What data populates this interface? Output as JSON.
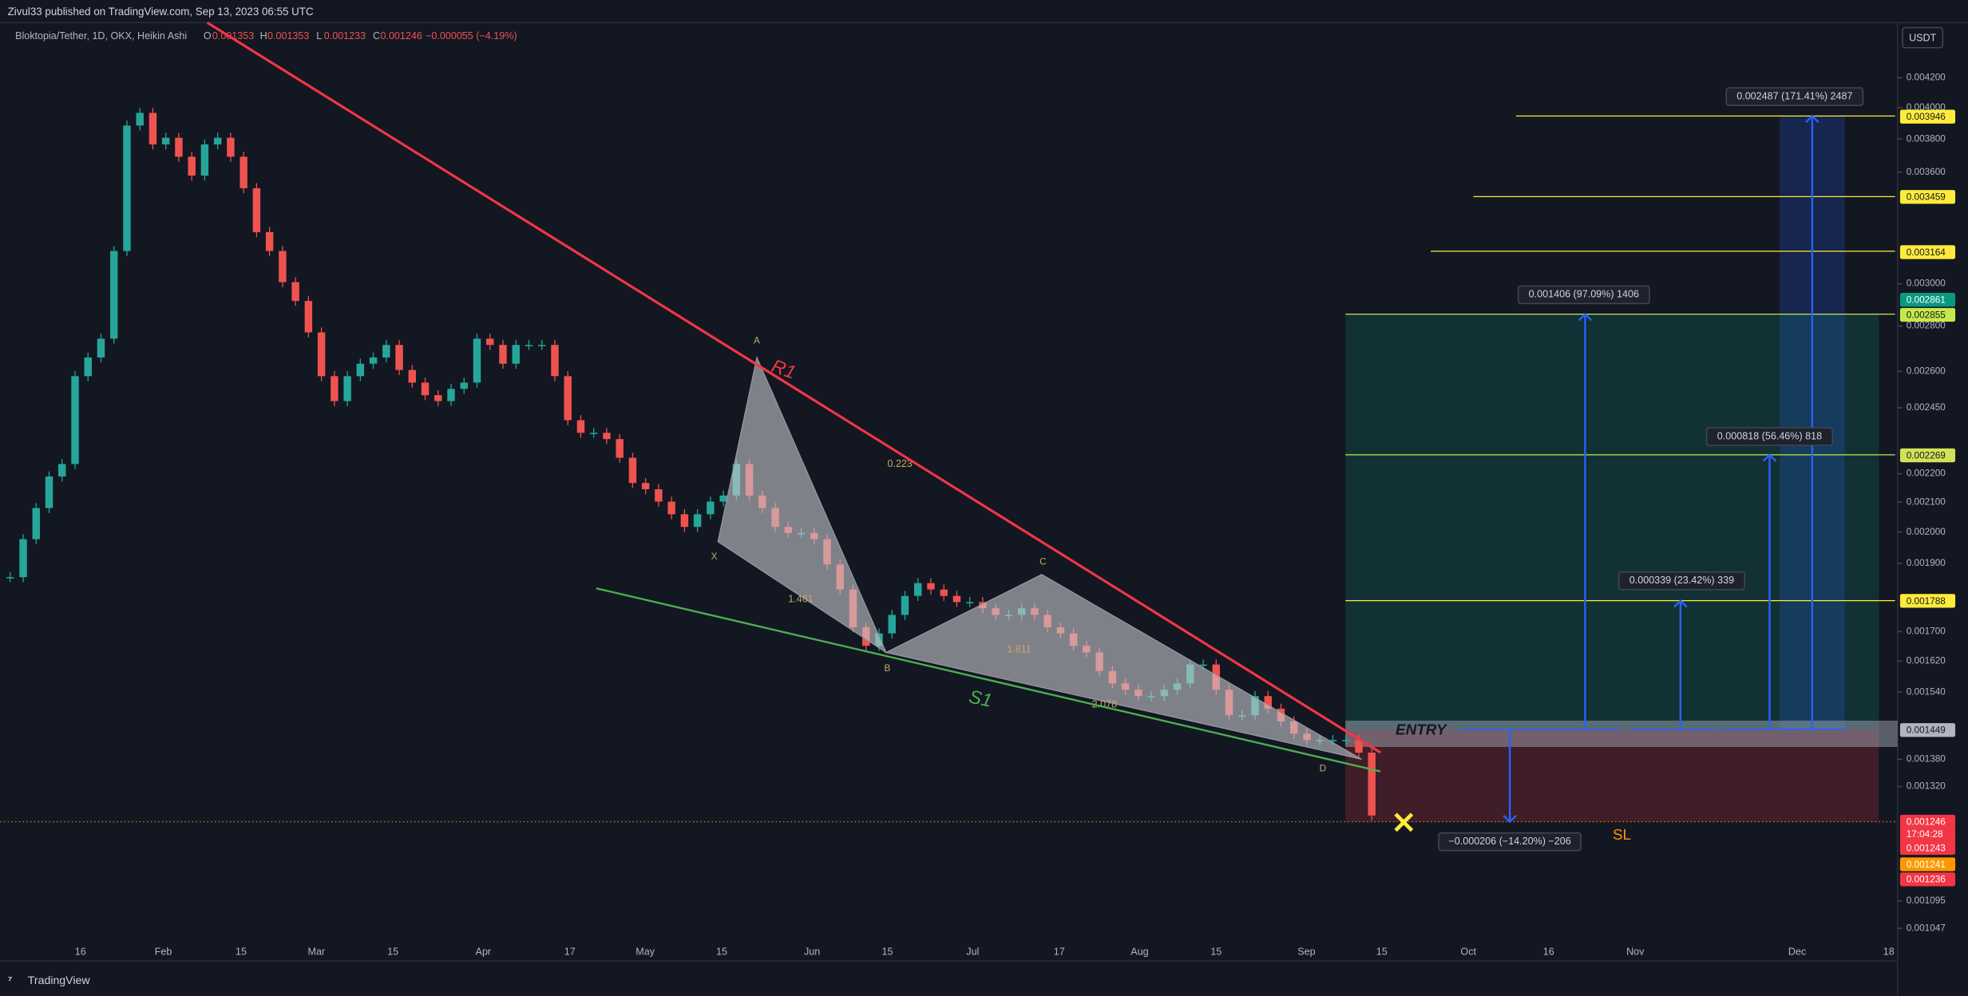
{
  "header": {
    "publisher": "Zivul33 published on TradingView.com, Sep 13, 2023 06:55 UTC",
    "brand": "TradingView"
  },
  "chart_data": {
    "type": "candlestick",
    "symbol": "Bloktopia/Tether, 1D, OKX, Heikin Ashi",
    "ohlc": [
      {
        "label": "O",
        "value": 0.001353
      },
      {
        "label": "H",
        "value": 0.001353
      },
      {
        "label": "L",
        "value": 0.001233
      },
      {
        "label": "C",
        "value": 0.001246
      }
    ],
    "change": "−0.000055 (−4.19%)",
    "currency": "USDT",
    "up_color": "#26a69a",
    "down_color": "#ef5350",
    "values": [
      0.001858,
      0.001977,
      0.00208,
      0.00219,
      0.002235,
      0.00258,
      0.00266,
      0.002743,
      0.003165,
      0.003885,
      0.003966,
      0.003767,
      0.003808,
      0.003692,
      0.00358,
      0.003767,
      0.003808,
      0.003692,
      0.003507,
      0.003264,
      0.003165,
      0.003008,
      0.002917,
      0.002771,
      0.00258,
      0.002477,
      0.00258,
      0.002633,
      0.00266,
      0.002715,
      0.002606,
      0.002553,
      0.002501,
      0.002477,
      0.002527,
      0.002553,
      0.002743,
      0.002715,
      0.002633,
      0.002715,
      0.002715,
      0.002715,
      0.00258,
      0.002401,
      0.002352,
      0.002352,
      0.002328,
      0.002258,
      0.002167,
      0.002145,
      0.002102,
      0.002059,
      0.002017,
      0.002059,
      0.002102,
      0.002123,
      0.002235,
      0.002123,
      0.00208,
      0.002017,
      0.001997,
      0.001997,
      0.001977,
      0.001897,
      0.001821,
      0.001712,
      0.001661,
      0.001695,
      0.001747,
      0.001802,
      0.00184,
      0.001821,
      0.001802,
      0.001784,
      0.001784,
      0.001766,
      0.001747,
      0.001747,
      0.001766,
      0.001747,
      0.001712,
      0.001695,
      0.001661,
      0.001643,
      0.001594,
      0.001562,
      0.001546,
      0.00153,
      0.00153,
      0.001546,
      0.001562,
      0.001611,
      0.001611,
      0.001546,
      0.001483,
      0.001483,
      0.00153,
      0.001499,
      0.001468,
      0.001439,
      0.001424,
      0.001424,
      0.001424,
      0.001424,
      0.001395,
      0.001259
    ],
    "log_scale": true,
    "ylim": [
      0.001,
      0.0046
    ],
    "yticks": [
      {
        "value": 0.0042,
        "label": "0.004200"
      },
      {
        "value": 0.004,
        "label": "0.004000"
      },
      {
        "value": 0.0038,
        "label": "0.003800"
      },
      {
        "value": 0.0036,
        "label": "0.003600"
      },
      {
        "value": 0.003,
        "label": "0.003000"
      },
      {
        "value": 0.0028,
        "label": "0.002800"
      },
      {
        "value": 0.0026,
        "label": "0.002600"
      },
      {
        "value": 0.00245,
        "label": "0.002450"
      },
      {
        "value": 0.0022,
        "label": "0.002200"
      },
      {
        "value": 0.0021,
        "label": "0.002100"
      },
      {
        "value": 0.002,
        "label": "0.002000"
      },
      {
        "value": 0.0019,
        "label": "0.001900"
      },
      {
        "value": 0.0017,
        "label": "0.001700"
      },
      {
        "value": 0.00162,
        "label": "0.001620"
      },
      {
        "value": 0.00154,
        "label": "0.001540"
      },
      {
        "value": 0.00138,
        "label": "0.001380"
      },
      {
        "value": 0.00132,
        "label": "0.001320"
      },
      {
        "value": 0.001095,
        "label": "0.001095"
      },
      {
        "value": 0.001047,
        "label": "0.001047"
      }
    ],
    "x_tick_labels": [
      "16",
      "Feb",
      "15",
      "Mar",
      "15",
      "Apr",
      "17",
      "May",
      "15",
      "Jun",
      "15",
      "Jul",
      "17",
      "Aug",
      "15",
      "Sep",
      "15",
      "Oct",
      "16",
      "Nov",
      "Dec",
      "18"
    ],
    "price_tags": [
      {
        "value": 0.003946,
        "color": "#ffeb3b"
      },
      {
        "value": 0.003459,
        "color": "#ffeb3b"
      },
      {
        "value": 0.003164,
        "color": "#ffeb3b"
      },
      {
        "value": 0.002861,
        "color": "#089981"
      },
      {
        "value": 0.002855,
        "color": "#c5e84a"
      },
      {
        "value": 0.002269,
        "color": "#d4e157"
      },
      {
        "value": 0.001788,
        "color": "#ffeb3b"
      },
      {
        "value": 0.001449,
        "color": "#b2b5be"
      },
      {
        "value": 0.001246,
        "color": "#f23645"
      },
      {
        "value": 0.001243,
        "color": "#f23645"
      },
      {
        "value": 0.001241,
        "color": "#ff9800"
      },
      {
        "value": 0.001236,
        "color": "#f23645"
      }
    ],
    "countdown": "17:04:28",
    "levels": [
      0.003946,
      0.003459,
      0.003164,
      0.002855,
      0.002269,
      0.001788
    ],
    "pattern": {
      "points": [
        {
          "label": "X",
          "value": 0.001969
        },
        {
          "label": "A",
          "value": 0.00266
        },
        {
          "label": "B",
          "value": 0.001643
        },
        {
          "label": "C",
          "value": 0.001866
        },
        {
          "label": "D",
          "value": 0.00138
        }
      ],
      "ratios": [
        0.223,
        1.461,
        1.811,
        2.078
      ]
    },
    "trendlines": [
      "R1",
      "S1"
    ],
    "position": {
      "entry_label": "ENTRY",
      "stop_label": "SL",
      "entry": 0.001449,
      "stop": 0.001246,
      "target": 0.002855
    },
    "measurements": [
      {
        "text": "0.002487 (171.41%) 2487",
        "value": 0.003946
      },
      {
        "text": "0.001406 (97.09%) 1406",
        "value": 0.002855
      },
      {
        "text": "0.000818 (56.46%) 818",
        "value": 0.002269
      },
      {
        "text": "0.000339 (23.42%) 339",
        "value": 0.001788
      },
      {
        "text": "−0.000206 (−14.20%) −206",
        "value": 0.001246
      }
    ]
  }
}
